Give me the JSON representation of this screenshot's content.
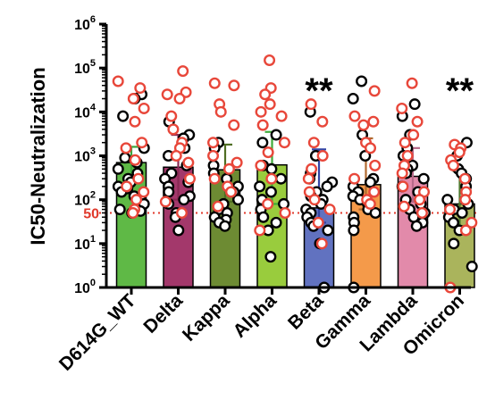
{
  "chart_data": {
    "type": "bar",
    "title": "",
    "xlabel": "",
    "ylabel": "IC50-Neutralization",
    "yscale": "log",
    "ylim": [
      1,
      1000000
    ],
    "yticks": [
      {
        "base": "10",
        "exp": "0"
      },
      {
        "base": "10",
        "exp": "1"
      },
      {
        "base": "10",
        "exp": "2"
      },
      {
        "base": "10",
        "exp": "3"
      },
      {
        "base": "10",
        "exp": "4"
      },
      {
        "base": "10",
        "exp": "5"
      },
      {
        "base": "10",
        "exp": "6"
      }
    ],
    "threshold": {
      "value": 50,
      "label": "50",
      "color": "#e0392b"
    },
    "grid": false,
    "legend": "none",
    "categories": [
      "D614G_WT",
      "Delta",
      "Kappa",
      "Alpha",
      "Beta",
      "Gamma",
      "Lambda",
      "Omicron"
    ],
    "values": [
      700,
      550,
      480,
      620,
      65,
      220,
      340,
      80
    ],
    "error_bars": [
      {
        "low": 300,
        "high": 1600
      },
      {
        "low": 100,
        "high": 3000
      },
      {
        "low": 90,
        "high": 1800
      },
      {
        "low": 80,
        "high": 3500
      },
      {
        "low": 30,
        "high": 1400
      },
      {
        "low": 60,
        "high": 2500
      },
      {
        "low": 90,
        "high": 1500
      },
      {
        "low": 25,
        "high": 450
      }
    ],
    "bar_colors": [
      "#5fb946",
      "#a3386b",
      "#6d8b33",
      "#99cc3d",
      "#6172c0",
      "#f49a4a",
      "#e28aaa",
      "#aab45c"
    ],
    "errorbar_colors": [
      "#3aa53c",
      "#8a2a55",
      "#4f6e23",
      "#3faa3a",
      "#3345a5",
      "#b06a30",
      "#b86a8a",
      "#4f7a30"
    ],
    "point_colors": {
      "red": "#e8473a",
      "black": "#000000"
    },
    "annotations": [
      {
        "category": "Beta",
        "text": "**"
      },
      {
        "category": "Omicron",
        "text": "**"
      }
    ],
    "points": [
      {
        "category": "D614G_WT",
        "black": [
          25000,
          20000,
          8000,
          1500,
          900,
          700,
          500,
          400,
          300,
          250,
          200,
          180,
          150,
          120,
          100,
          80,
          60,
          55,
          50
        ],
        "red": [
          50000,
          35000,
          20000,
          12000,
          6000,
          2000,
          1500,
          800,
          300,
          200,
          150,
          100,
          60,
          50
        ]
      },
      {
        "category": "Delta",
        "black": [
          6000,
          3000,
          2500,
          1500,
          1000,
          600,
          400,
          300,
          250,
          200,
          150,
          120,
          100,
          80,
          50,
          40,
          20
        ],
        "red": [
          85000,
          28000,
          25000,
          20000,
          8000,
          4000,
          2000,
          1500,
          1000,
          700,
          300,
          90,
          50
        ]
      },
      {
        "category": "Kappa",
        "black": [
          2000,
          1500,
          600,
          400,
          300,
          200,
          150,
          100,
          80,
          60,
          50,
          40,
          35,
          30,
          25
        ],
        "red": [
          45000,
          40000,
          15000,
          10000,
          5000,
          2000,
          1000,
          700,
          500,
          300,
          200,
          150,
          70
        ]
      },
      {
        "category": "Alpha",
        "black": [
          3000,
          2000,
          600,
          500,
          300,
          200,
          150,
          100,
          80,
          60,
          40,
          30,
          20,
          5
        ],
        "red": [
          150000,
          35000,
          25000,
          15000,
          10000,
          8000,
          5000,
          2000,
          1200,
          600,
          300,
          80,
          50,
          20
        ]
      },
      {
        "category": "Beta",
        "black": [
          10000,
          1000,
          400,
          300,
          250,
          200,
          150,
          120,
          100,
          80,
          60,
          50,
          40,
          30,
          25,
          20,
          10,
          1
        ],
        "red": [
          15000,
          6000,
          2000,
          1000,
          500,
          300,
          150,
          100,
          60,
          30,
          10
        ]
      },
      {
        "category": "Gamma",
        "black": [
          50000,
          20000,
          3000,
          1000,
          300,
          250,
          200,
          150,
          120,
          100,
          80,
          60,
          50,
          40,
          30,
          20,
          1
        ],
        "red": [
          30000,
          8000,
          6000,
          5000,
          2000,
          1500,
          600,
          300,
          150,
          100,
          80
        ]
      },
      {
        "category": "Lambda",
        "black": [
          15000,
          8000,
          3000,
          1500,
          1000,
          600,
          500,
          400,
          300,
          200,
          150,
          100,
          80,
          60,
          50,
          40,
          30,
          25
        ],
        "red": [
          45000,
          12000,
          6000,
          3000,
          2000,
          1000,
          600,
          400,
          200,
          150,
          100,
          70,
          50
        ]
      },
      {
        "category": "Omicron",
        "black": [
          2000,
          1000,
          500,
          400,
          300,
          200,
          100,
          80,
          60,
          50,
          40,
          30,
          20,
          10,
          3
        ],
        "red": [
          1800,
          1500,
          1200,
          800,
          600,
          300,
          150,
          100,
          60,
          30,
          20,
          1
        ]
      }
    ]
  }
}
